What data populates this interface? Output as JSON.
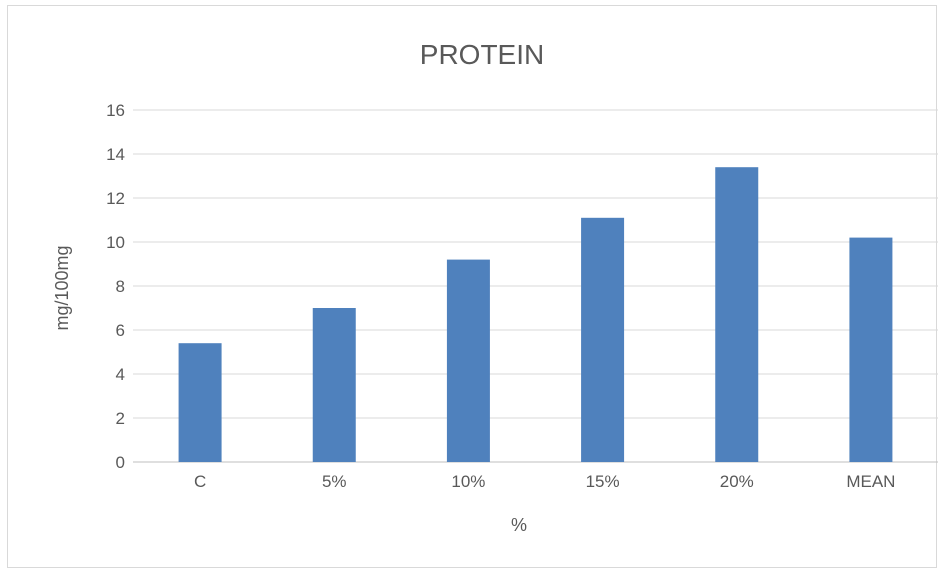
{
  "chart_data": {
    "type": "bar",
    "title": "PROTEIN",
    "xlabel": "%",
    "ylabel": "mg/100mg",
    "categories": [
      "C",
      "5%",
      "10%",
      "15%",
      "20%",
      "MEAN"
    ],
    "series": [
      {
        "values": [
          5.4,
          7.0,
          9.2,
          11.1,
          13.4,
          10.2
        ],
        "color": "#4f81bd"
      }
    ],
    "ylim": [
      0,
      16
    ],
    "yticks": [
      0,
      2,
      4,
      6,
      8,
      10,
      12,
      14,
      16
    ],
    "grid": true,
    "legend": "none"
  }
}
